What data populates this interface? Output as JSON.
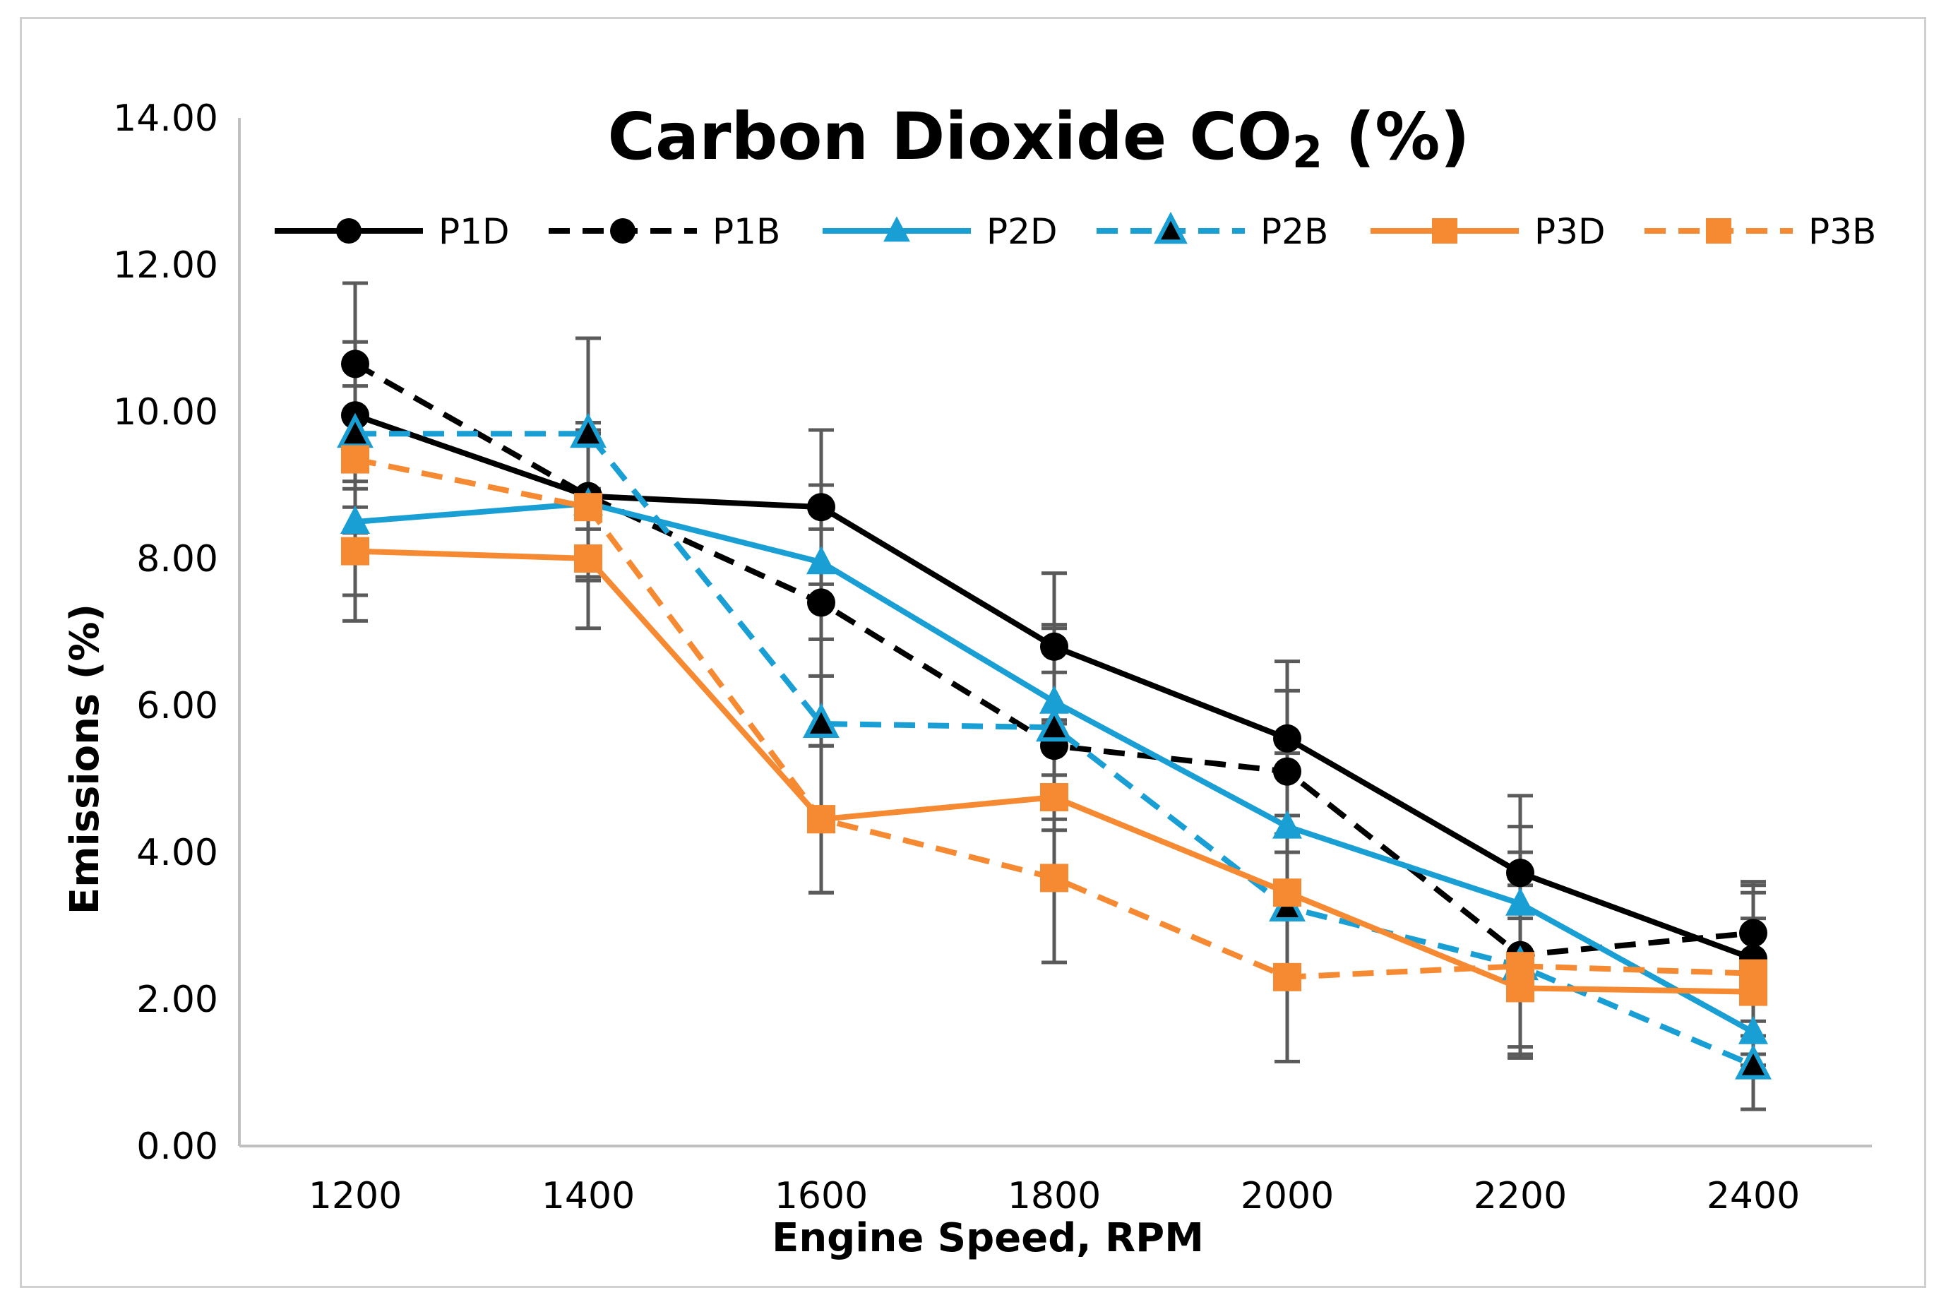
{
  "chart_data": {
    "type": "line",
    "title": "Carbon Dioxide CO",
    "title_subscript": "2",
    "title_suffix": " (%)",
    "xlabel": "Engine Speed, RPM",
    "ylabel": "Emissions (%)",
    "ylim": [
      0,
      14
    ],
    "yticks": [
      "0.00",
      "2.00",
      "4.00",
      "6.00",
      "8.00",
      "10.00",
      "12.00",
      "14.00"
    ],
    "categories": [
      "1200",
      "1400",
      "1600",
      "1800",
      "2000",
      "2200",
      "2400"
    ],
    "legend_position": "top",
    "series": [
      {
        "name": "P1D",
        "color": "#000000",
        "dash": "solid",
        "marker": "circle",
        "values": [
          9.95,
          8.85,
          8.7,
          6.8,
          5.55,
          3.72,
          2.55
        ],
        "errors": [
          1.0,
          1.0,
          1.05,
          1.0,
          1.05,
          1.05,
          1.05
        ]
      },
      {
        "name": "P1B",
        "color": "#000000",
        "dash": "dashed",
        "marker": "circle",
        "values": [
          10.65,
          8.85,
          7.4,
          5.45,
          5.1,
          2.6,
          2.9
        ],
        "errors": [
          1.1,
          1.0,
          1.0,
          1.0,
          1.1,
          1.4,
          0.65
        ]
      },
      {
        "name": "P2D",
        "color": "#1a9fd4",
        "dash": "solid",
        "marker": "triangle",
        "values": [
          8.5,
          8.75,
          7.95,
          6.05,
          4.35,
          3.3,
          1.55
        ],
        "errors": [
          1.0,
          1.0,
          1.05,
          1.0,
          1.0,
          1.05,
          1.05
        ]
      },
      {
        "name": "P2B",
        "color": "#1a9fd4",
        "dash": "dashed",
        "marker": "triangle",
        "values": [
          9.7,
          9.7,
          5.75,
          5.7,
          3.25,
          2.45,
          1.1
        ],
        "errors": [
          1.0,
          1.3,
          1.15,
          1.4,
          1.0,
          1.2,
          0.6
        ]
      },
      {
        "name": "P3D",
        "color": "#f58a33",
        "dash": "solid",
        "marker": "square",
        "values": [
          8.1,
          8.0,
          4.45,
          4.75,
          3.45,
          2.15,
          2.1
        ],
        "errors": [
          0.95,
          0.95,
          1.0,
          1.0,
          1.05,
          0.95,
          1.0
        ]
      },
      {
        "name": "P3B",
        "color": "#f58a33",
        "dash": "dashed",
        "marker": "square",
        "values": [
          9.35,
          8.7,
          4.45,
          3.65,
          2.3,
          2.45,
          2.35
        ],
        "errors": [
          1.0,
          1.0,
          1.0,
          1.15,
          1.15,
          1.1,
          1.1
        ]
      }
    ]
  }
}
